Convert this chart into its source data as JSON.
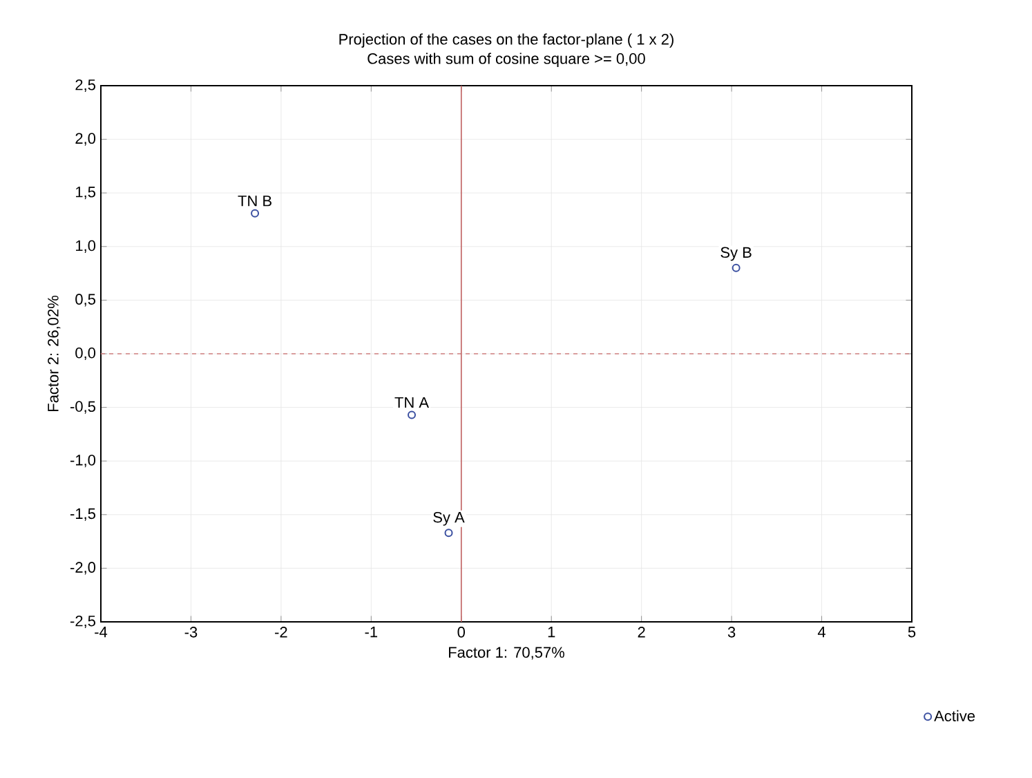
{
  "chart_data": {
    "type": "scatter",
    "title": "Projection of the cases on the factor-plane ( 1 x 2)",
    "subtitle": "Cases with sum of cosine square >= 0,00",
    "xlabel": "Factor 1: 70,57%",
    "ylabel": "Factor 2: 26,02%",
    "x": [
      -2.29,
      -0.55,
      -0.14,
      3.05
    ],
    "series": [
      {
        "name": "Active",
        "color": "#3a4fa0",
        "values": [
          1.31,
          -0.57,
          -1.67,
          0.8
        ]
      }
    ],
    "annotations": [
      {
        "text": "TN B",
        "x": -2.29,
        "y": 1.31
      },
      {
        "text": "TN A",
        "x": -0.55,
        "y": -0.57
      },
      {
        "text": "Sy A",
        "x": -0.14,
        "y": -1.67
      },
      {
        "text": "Sy B",
        "x": 3.05,
        "y": 0.8
      }
    ],
    "xlim": [
      -4,
      5
    ],
    "ylim": [
      -2.5,
      2.5
    ],
    "xticks": [
      -4,
      -3,
      -2,
      -1,
      0,
      1,
      2,
      3,
      4,
      5
    ],
    "yticks": [
      {
        "value": -2.5,
        "label": "-2,5"
      },
      {
        "value": -2,
        "label": "-2,0"
      },
      {
        "value": -1.5,
        "label": "-1,5"
      },
      {
        "value": -1,
        "label": "-1,0"
      },
      {
        "value": -0.5,
        "label": "-0,5"
      },
      {
        "value": 0,
        "label": "0,0"
      },
      {
        "value": 0.5,
        "label": "0,5"
      },
      {
        "value": 1,
        "label": "1,0"
      },
      {
        "value": 1.5,
        "label": "1,5"
      },
      {
        "value": 2,
        "label": "2,0"
      },
      {
        "value": 2.5,
        "label": "2,5"
      }
    ],
    "ref_lines": [
      {
        "axis": "y",
        "value": 0,
        "color": "#d08080",
        "line_style": "dashed"
      },
      {
        "axis": "x",
        "value": 0,
        "color": "#c06060",
        "line_style": "solid"
      }
    ],
    "grid": true,
    "legend": "bottom right"
  }
}
